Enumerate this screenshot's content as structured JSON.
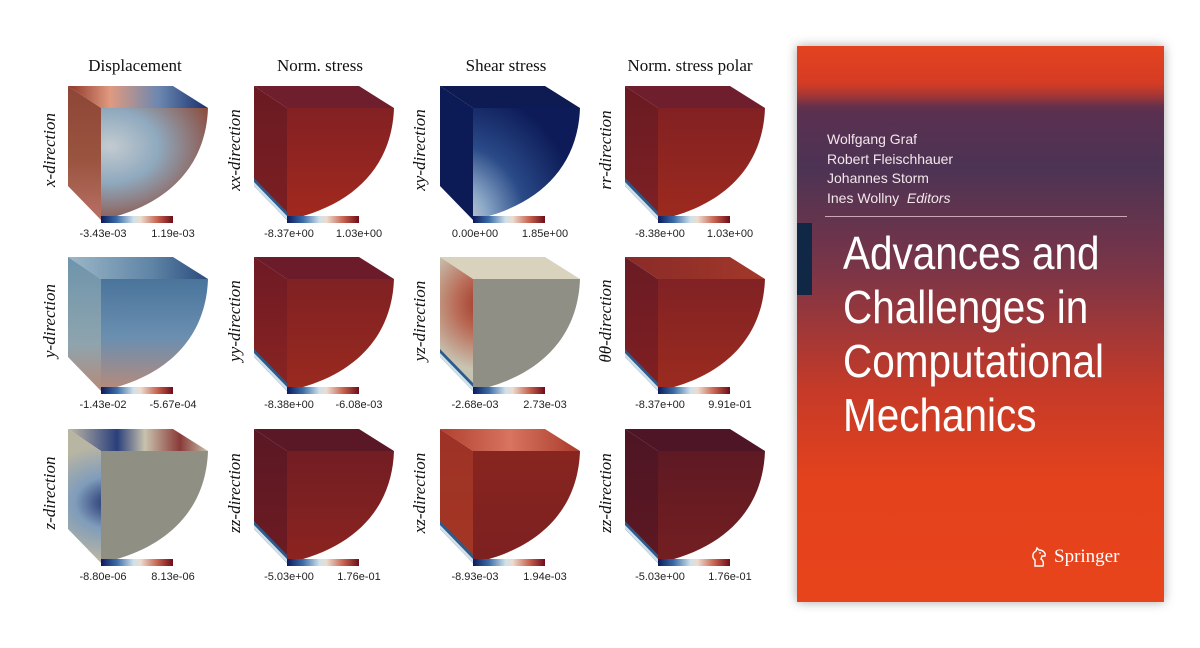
{
  "figure": {
    "columns": [
      "Displacement",
      "Norm. stress",
      "Shear stress",
      "Norm. stress polar"
    ],
    "rows": [
      [
        {
          "label": "x-direction",
          "min": "-3.43e-03",
          "max": "1.19e-03",
          "icon": "cube-displacement-x"
        },
        {
          "label": "xx-direction",
          "min": "-8.37e+00",
          "max": "1.03e+00",
          "icon": "cube-stress-xx"
        },
        {
          "label": "xy-direction",
          "min": "0.00e+00",
          "max": "1.85e+00",
          "icon": "cube-shear-xy"
        },
        {
          "label": "rr-direction",
          "min": "-8.38e+00",
          "max": "1.03e+00",
          "icon": "cube-polar-rr"
        }
      ],
      [
        {
          "label": "y-direction",
          "min": "-1.43e-02",
          "max": "-5.67e-04",
          "icon": "cube-displacement-y"
        },
        {
          "label": "yy-direction",
          "min": "-8.38e+00",
          "max": "-6.08e-03",
          "icon": "cube-stress-yy"
        },
        {
          "label": "yz-direction",
          "min": "-2.68e-03",
          "max": "2.73e-03",
          "icon": "cube-shear-yz"
        },
        {
          "label": "θθ-direction",
          "min": "-8.37e+00",
          "max": "9.91e-01",
          "icon": "cube-polar-thetatheta"
        }
      ],
      [
        {
          "label": "z-direction",
          "min": "-8.80e-06",
          "max": "8.13e-06",
          "icon": "cube-displacement-z"
        },
        {
          "label": "zz-direction",
          "min": "-5.03e+00",
          "max": "1.76e-01",
          "icon": "cube-stress-zz"
        },
        {
          "label": "xz-direction",
          "min": "-8.93e-03",
          "max": "1.94e-03",
          "icon": "cube-shear-xz"
        },
        {
          "label": "zz-direction",
          "min": "-5.03e+00",
          "max": "1.76e-01",
          "icon": "cube-polar-zz"
        }
      ]
    ],
    "colormap": [
      "#0c1a5c",
      "#3a6ca8",
      "#cfe1ea",
      "#ecdcd0",
      "#c86450",
      "#6e0c18"
    ]
  },
  "book": {
    "editors": [
      "Wolfgang Graf",
      "Robert Fleischhauer",
      "Johannes Storm",
      "Ines Wollny"
    ],
    "editors_label": "Editors",
    "title_lines": [
      "Advances and",
      "Challenges in",
      "Computational",
      "Mechanics"
    ],
    "publisher": "Springer",
    "publisher_icon": "springer-horse-logo-icon",
    "accent_color": "#e3421d"
  }
}
